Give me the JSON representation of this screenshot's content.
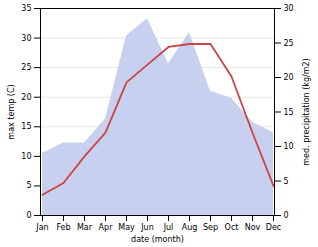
{
  "chart_data": {
    "type": "line",
    "xlabel": "date (month)",
    "ylabel": "max temp (C)",
    "y2label": "med. precipitation (kg/m2)",
    "categories": [
      "Jan",
      "Feb",
      "Mar",
      "Apr",
      "May",
      "Jun",
      "Jul",
      "Aug",
      "Sep",
      "Oct",
      "Nov",
      "Dec"
    ],
    "series": [
      {
        "type": "area",
        "axis": "y2",
        "color": "#c8d0f0",
        "values": [
          9.0,
          10.5,
          10.5,
          14.0,
          26.0,
          28.5,
          22.0,
          26.5,
          18.0,
          17.0,
          13.5,
          12.0
        ]
      },
      {
        "type": "line",
        "color": "#cc4444",
        "values": [
          3.5,
          5.5,
          10.0,
          14.0,
          22.5,
          25.5,
          28.5,
          29.0,
          29.0,
          23.5,
          14.0,
          5.0
        ]
      }
    ],
    "ylim": [
      0,
      35
    ],
    "yticks": [
      0,
      5,
      10,
      15,
      20,
      25,
      30,
      35
    ],
    "y2lim": [
      0,
      30
    ],
    "y2ticks": [
      0,
      5,
      10,
      15,
      20,
      25,
      30
    ],
    "grid": true
  }
}
